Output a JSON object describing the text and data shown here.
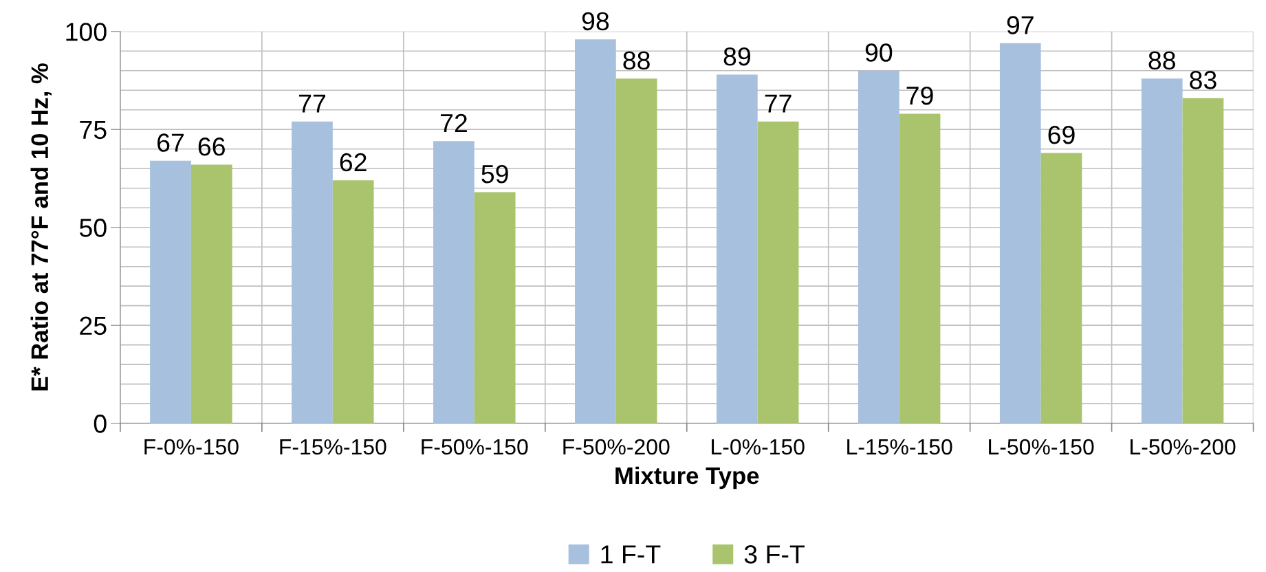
{
  "chart_data": {
    "type": "bar",
    "xlabel": "Mixture Type",
    "ylabel": "E* Ratio at 77°F and 10 Hz, %",
    "categories": [
      "F-0%-150",
      "F-15%-150",
      "F-50%-150",
      "F-50%-200",
      "L-0%-150",
      "L-15%-150",
      "L-50%-150",
      "L-50%-200"
    ],
    "series": [
      {
        "name": "1 F-T",
        "color": "#a7c0de",
        "values": [
          67,
          77,
          72,
          98,
          89,
          90,
          97,
          88
        ]
      },
      {
        "name": "3 F-T",
        "color": "#a9c46c",
        "values": [
          66,
          62,
          59,
          88,
          77,
          79,
          69,
          83
        ]
      }
    ],
    "ylim": [
      0,
      100
    ],
    "yticks": [
      0,
      {
        "value": 5,
        "label": null
      },
      {
        "value": 10,
        "label": null
      },
      {
        "value": 15,
        "label": null
      },
      {
        "value": 20,
        "label": null
      },
      25,
      {
        "value": 30,
        "label": null
      },
      {
        "value": 35,
        "label": null
      },
      {
        "value": 40,
        "label": null
      },
      {
        "value": 45,
        "label": null
      },
      50,
      {
        "value": 55,
        "label": null
      },
      {
        "value": 60,
        "label": null
      },
      {
        "value": 65,
        "label": null
      },
      {
        "value": 70,
        "label": null
      },
      75,
      {
        "value": 80,
        "label": null
      },
      {
        "value": 85,
        "label": null
      },
      {
        "value": 90,
        "label": null
      },
      {
        "value": 95,
        "label": null
      },
      100
    ],
    "grid": true,
    "legend": "bottom",
    "data_labels": true
  }
}
